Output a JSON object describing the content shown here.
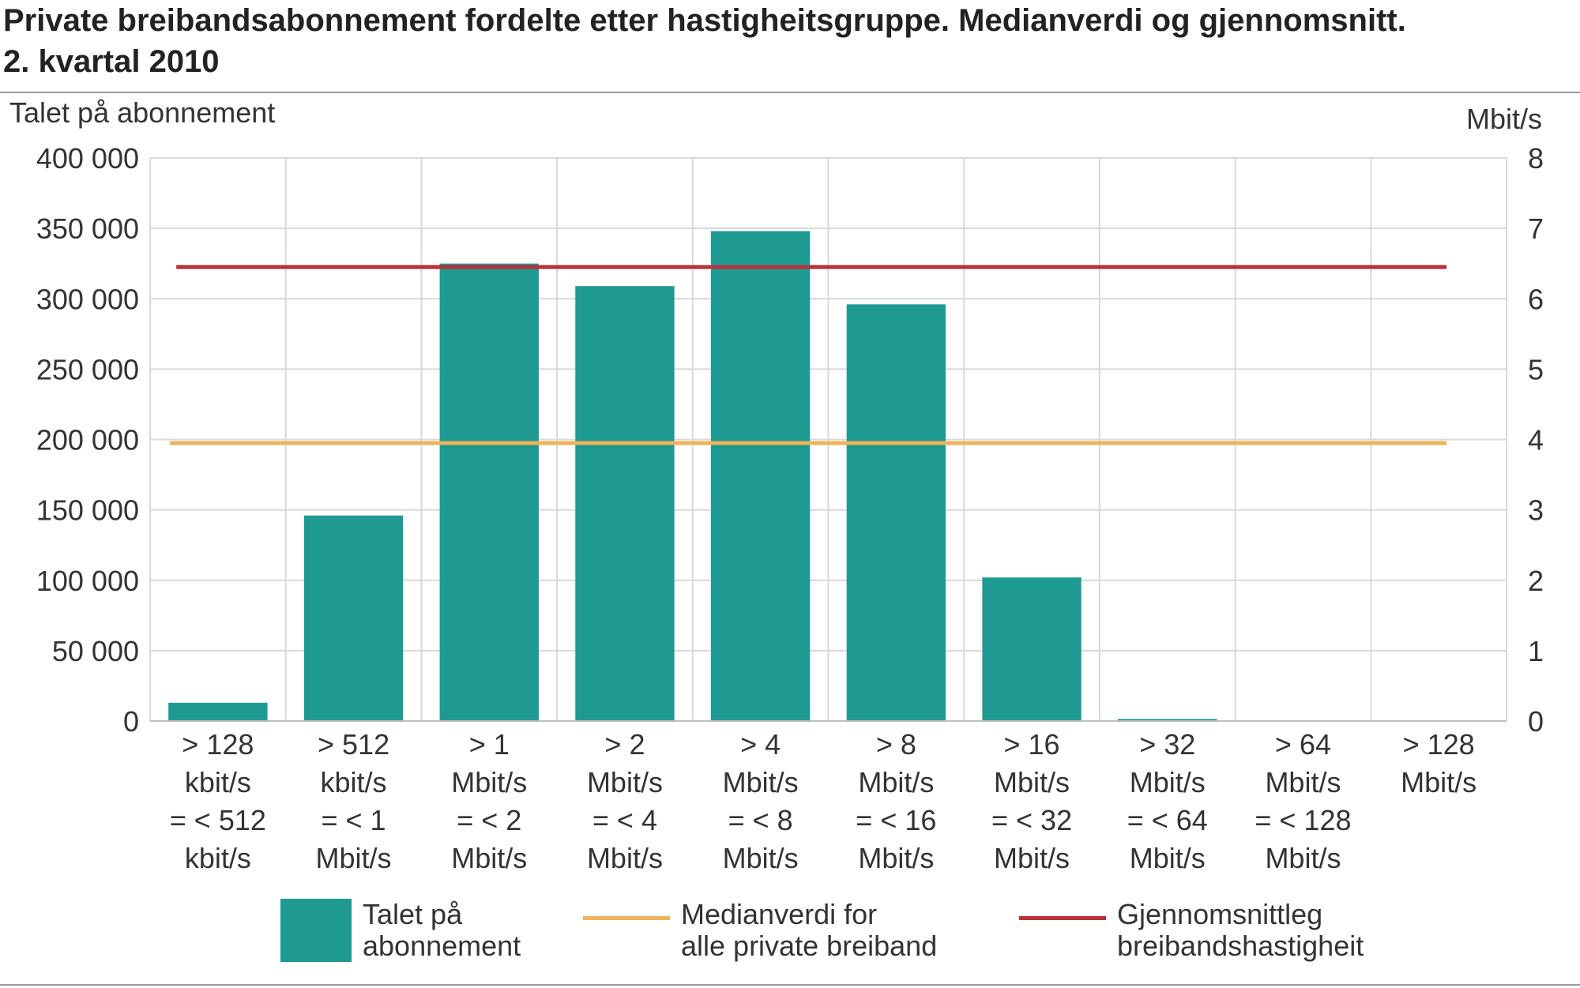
{
  "title": {
    "line1": "Private breibandsabonnement fordelte etter hastigheitsgruppe. Medianverdi og gjennomsnitt.",
    "line2": "2. kvartal 2010"
  },
  "chart_data": {
    "type": "bar",
    "categories": [
      [
        "> 128",
        "kbit/s",
        "= < 512",
        "kbit/s"
      ],
      [
        "> 512",
        "kbit/s",
        "= < 1",
        "Mbit/s"
      ],
      [
        "> 1",
        "Mbit/s",
        "= < 2",
        "Mbit/s"
      ],
      [
        "> 2",
        "Mbit/s",
        "= < 4",
        "Mbit/s"
      ],
      [
        "> 4",
        "Mbit/s",
        "= < 8",
        "Mbit/s"
      ],
      [
        "> 8",
        "Mbit/s",
        "= < 16",
        "Mbit/s"
      ],
      [
        "> 16",
        "Mbit/s",
        "= < 32",
        "Mbit/s"
      ],
      [
        "> 32",
        "Mbit/s",
        "= < 64",
        "Mbit/s"
      ],
      [
        "> 64",
        "Mbit/s",
        "= < 128",
        "Mbit/s"
      ],
      [
        "> 128",
        "Mbit/s"
      ]
    ],
    "series": [
      {
        "name": "Talet på abonnement",
        "axis": "left",
        "color": "#1e9a93",
        "values": [
          13000,
          146000,
          325000,
          309000,
          348000,
          296000,
          102000,
          1500,
          0,
          0
        ]
      },
      {
        "name": "Medianverdi for alle private breiband",
        "axis": "right",
        "color": "#f0b25a",
        "value": 3.95
      },
      {
        "name": "Gjennomsnittleg breibandshastigheit",
        "axis": "right",
        "color": "#b8323a",
        "value": 6.45
      }
    ],
    "ylabel_left": "Talet på abonnement",
    "ylabel_right": "Mbit/s",
    "ylim_left": [
      0,
      400000
    ],
    "ylim_right": [
      0,
      8
    ],
    "yticks_left": [
      "0",
      "50 000",
      "100 000",
      "150 000",
      "200 000",
      "250 000",
      "300 000",
      "350 000",
      "400 000"
    ],
    "yticks_right": [
      "0",
      "1",
      "2",
      "3",
      "4",
      "5",
      "6",
      "7",
      "8"
    ],
    "grid": true,
    "legend_position": "bottom"
  },
  "legend": {
    "bar_label": "Talet på\nabonnement",
    "median_label": "Medianverdi for\nalle private breiband",
    "mean_label": "Gjennomsnittleg\nbreibandshastigheit"
  }
}
